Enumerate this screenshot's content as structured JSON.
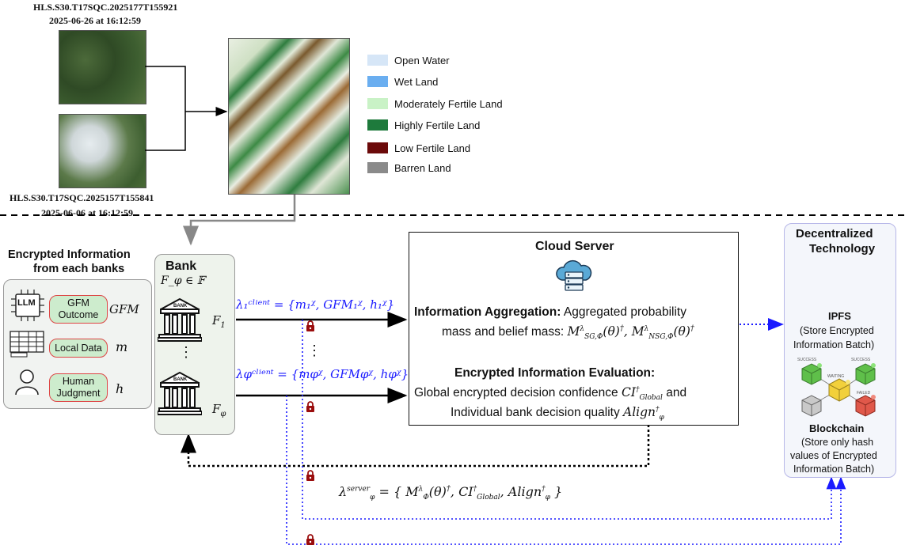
{
  "satellite": {
    "top_id": "HLS.S30.T17SQC.2025177T155921",
    "top_date": "2025-06-26 at 16:12:59",
    "bottom_id": "HLS.S30.T17SQC.2025157T155841",
    "bottom_date": "2025-06-06 at 16:12:59"
  },
  "legend": [
    {
      "label": "Open Water",
      "color": "#d6e6f7"
    },
    {
      "label": "Wet Land",
      "color": "#6aaef0"
    },
    {
      "label": "Moderately Fertile Land",
      "color": "#c9f2c6"
    },
    {
      "label": "Highly Fertile Land",
      "color": "#1e7a3c"
    },
    {
      "label": "Low Fertile Land",
      "color": "#6b0a0a"
    },
    {
      "label": "Barren Land",
      "color": "#8a8a8a"
    }
  ],
  "encrypted_panel": {
    "title_line1": "Encrypted Information",
    "title_line2": "from each banks",
    "llm_label": "LLM",
    "items": [
      {
        "label": "GFM Outcome",
        "symbol": "GFM"
      },
      {
        "label": "Local Data",
        "symbol": "m"
      },
      {
        "label": "Human Judgment",
        "symbol": "h"
      }
    ]
  },
  "bank_panel": {
    "title": "Bank",
    "set_expr": "F_φ ∈ 𝔽",
    "bank_icon_text": "BANK",
    "f1": "F",
    "f1_sub": "1",
    "fphi": "F",
    "fphi_sub": "φ",
    "vdots": "⋮"
  },
  "client_msgs": {
    "msg1": "λ₁ᶜˡⁱᵉⁿᵗ = {m₁ᵡ, GFM₁ᵡ, h₁ᵡ}",
    "msg_phi": "λφᶜˡⁱᵉⁿᵗ = {mφᵡ, GFMφᵡ, hφᵡ}",
    "vdots": "⋮"
  },
  "cloud": {
    "title": "Cloud Server",
    "agg_bold": "Information Aggregation:",
    "agg_text": "Aggregated probability",
    "agg_line2": "mass and belief mass:",
    "agg_math": "M",
    "eval_bold": "Encrypted Information Evaluation:",
    "eval_line1": "Global encrypted decision confidence",
    "eval_line1_math": "CI",
    "eval_and": "and",
    "eval_line2": "Individual bank decision quality",
    "eval_line2_math": "Align"
  },
  "server_msg": {
    "lhs": "λ",
    "rhs": "= { M",
    "ci": "CI",
    "align": "Align"
  },
  "decentralized": {
    "title_line1": "Decentralized",
    "title_line2": "Technology",
    "ipfs_title": "IPFS",
    "ipfs_l1": "(Store Encrypted",
    "ipfs_l2": "Information Batch)",
    "chain_labels": [
      "SUCCESS",
      "SUCCESS",
      "WAITING",
      "FAILED"
    ],
    "bc_title": "Blockchain",
    "bc_l1": "(Store only hash",
    "bc_l2": "values of Encrypted",
    "bc_l3": "Information Batch)"
  }
}
